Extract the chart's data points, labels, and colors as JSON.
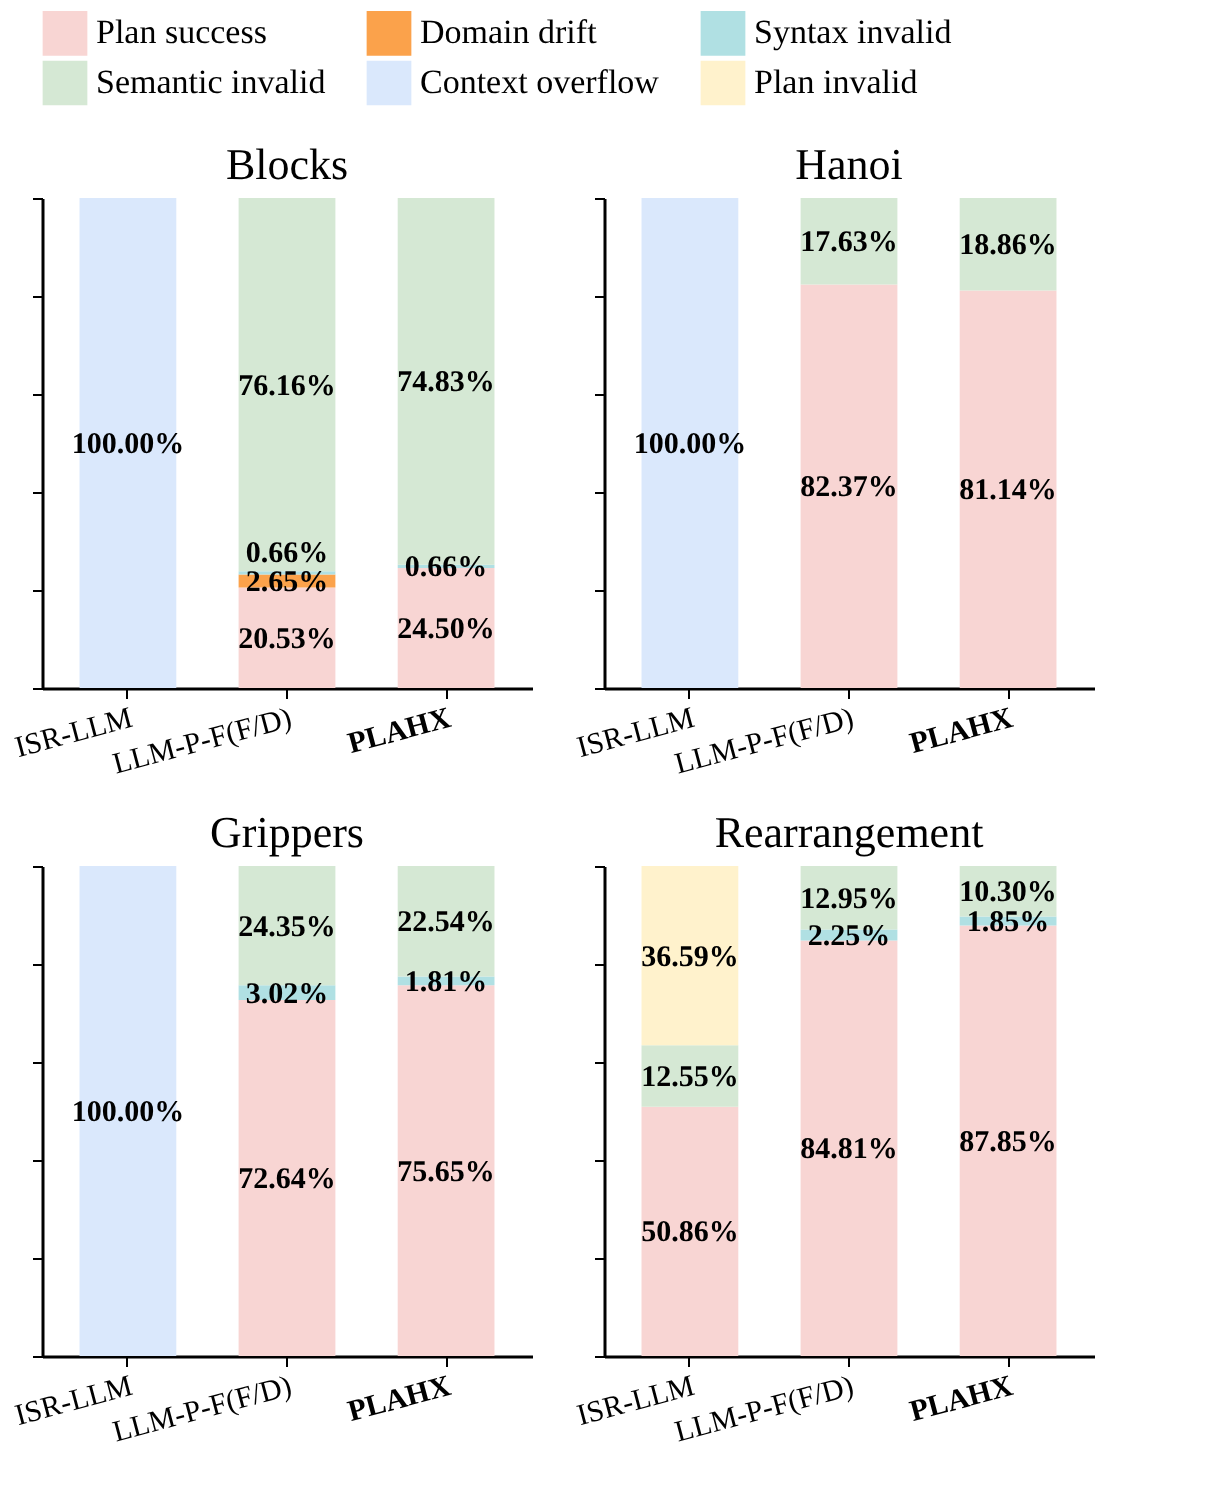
{
  "chart_data": [
    {
      "type": "bar",
      "title": "Blocks",
      "stacked": true,
      "legend": "top",
      "tick_labels": "x",
      "grid": false,
      "categories": [
        "ISR-LLM",
        "LLM-P-F(F/D)",
        "PLAHX"
      ],
      "ylim": [
        0,
        100
      ],
      "yticks": [
        {
          "value": 0,
          "label": null
        },
        {
          "value": 20,
          "label": null
        },
        {
          "value": 40,
          "label": null
        },
        {
          "value": 60,
          "label": null
        },
        {
          "value": 80,
          "label": null
        },
        {
          "value": 100,
          "label": null
        }
      ],
      "series": [
        {
          "name": "Plan success",
          "color": "#f8d5d3",
          "values": [
            null,
            20.53,
            24.5
          ],
          "value_labels": [
            null,
            "20.53%",
            "24.50%"
          ]
        },
        {
          "name": "Domain drift",
          "color": "#fba24b",
          "values": [
            null,
            2.65,
            null
          ],
          "value_labels": [
            null,
            "2.65%",
            null
          ]
        },
        {
          "name": "Syntax invalid",
          "color": "#b0e0e3",
          "values": [
            null,
            0.66,
            0.66
          ],
          "value_labels": [
            null,
            "0.66%",
            "0.66%"
          ]
        },
        {
          "name": "Semantic invalid",
          "color": "#d5e8d4",
          "values": [
            null,
            76.16,
            74.83
          ],
          "value_labels": [
            null,
            "76.16%",
            "74.83%"
          ]
        },
        {
          "name": "Context overflow",
          "color": "#dae8fc",
          "values": [
            100.0,
            null,
            null
          ],
          "value_labels": [
            "100.00%",
            null,
            null
          ]
        }
      ]
    },
    {
      "type": "bar",
      "title": "Hanoi",
      "stacked": true,
      "legend": "top",
      "tick_labels": "x",
      "grid": false,
      "categories": [
        "ISR-LLM",
        "LLM-P-F(F/D)",
        "PLAHX"
      ],
      "ylim": [
        0,
        100
      ],
      "yticks": [
        {
          "value": 0,
          "label": null
        },
        {
          "value": 20,
          "label": null
        },
        {
          "value": 40,
          "label": null
        },
        {
          "value": 60,
          "label": null
        },
        {
          "value": 80,
          "label": null
        },
        {
          "value": 100,
          "label": null
        }
      ],
      "series": [
        {
          "name": "Plan success",
          "color": "#f8d5d3",
          "values": [
            null,
            82.37,
            81.14
          ],
          "value_labels": [
            null,
            "82.37%",
            "81.14%"
          ]
        },
        {
          "name": "Semantic invalid",
          "color": "#d5e8d4",
          "values": [
            null,
            17.63,
            18.86
          ],
          "value_labels": [
            null,
            "17.63%",
            "18.86%"
          ]
        },
        {
          "name": "Context overflow",
          "color": "#dae8fc",
          "values": [
            100.0,
            null,
            null
          ],
          "value_labels": [
            "100.00%",
            null,
            null
          ]
        }
      ]
    },
    {
      "type": "bar",
      "title": "Grippers",
      "stacked": true,
      "legend": "top",
      "tick_labels": "x",
      "grid": false,
      "categories": [
        "ISR-LLM",
        "LLM-P-F(F/D)",
        "PLAHX"
      ],
      "ylim": [
        0,
        100
      ],
      "yticks": [
        {
          "value": 0,
          "label": null
        },
        {
          "value": 20,
          "label": null
        },
        {
          "value": 40,
          "label": null
        },
        {
          "value": 60,
          "label": null
        },
        {
          "value": 80,
          "label": null
        },
        {
          "value": 100,
          "label": null
        }
      ],
      "series": [
        {
          "name": "Plan success",
          "color": "#f8d5d3",
          "values": [
            null,
            72.64,
            75.65
          ],
          "value_labels": [
            null,
            "72.64%",
            "75.65%"
          ]
        },
        {
          "name": "Syntax invalid",
          "color": "#b0e0e3",
          "values": [
            null,
            3.02,
            1.81
          ],
          "value_labels": [
            null,
            "3.02%",
            "1.81%"
          ]
        },
        {
          "name": "Semantic invalid",
          "color": "#d5e8d4",
          "values": [
            null,
            24.35,
            22.54
          ],
          "value_labels": [
            null,
            "24.35%",
            "22.54%"
          ]
        },
        {
          "name": "Context overflow",
          "color": "#dae8fc",
          "values": [
            100.0,
            null,
            null
          ],
          "value_labels": [
            "100.00%",
            null,
            null
          ]
        }
      ]
    },
    {
      "type": "bar",
      "title": "Rearrangement",
      "stacked": true,
      "legend": "top",
      "tick_labels": "x",
      "grid": false,
      "categories": [
        "ISR-LLM",
        "LLM-P-F(F/D)",
        "PLAHX"
      ],
      "ylim": [
        0,
        100
      ],
      "yticks": [
        {
          "value": 0,
          "label": null
        },
        {
          "value": 20,
          "label": null
        },
        {
          "value": 40,
          "label": null
        },
        {
          "value": 60,
          "label": null
        },
        {
          "value": 80,
          "label": null
        },
        {
          "value": 100,
          "label": null
        }
      ],
      "series": [
        {
          "name": "Plan success",
          "color": "#f8d5d3",
          "values": [
            50.86,
            84.81,
            87.85
          ],
          "value_labels": [
            "50.86%",
            "84.81%",
            "87.85%"
          ]
        },
        {
          "name": "Syntax invalid",
          "color": "#b0e0e3",
          "values": [
            null,
            2.25,
            1.85
          ],
          "value_labels": [
            null,
            "2.25%",
            "1.85%"
          ]
        },
        {
          "name": "Semantic invalid",
          "color": "#d5e8d4",
          "values": [
            12.55,
            12.95,
            10.3
          ],
          "value_labels": [
            "12.55%",
            "12.95%",
            "10.30%"
          ]
        },
        {
          "name": "Plan invalid",
          "color": "#fff2cc",
          "values": [
            36.59,
            null,
            null
          ],
          "value_labels": [
            "36.59%",
            null,
            null
          ]
        }
      ]
    }
  ]
}
